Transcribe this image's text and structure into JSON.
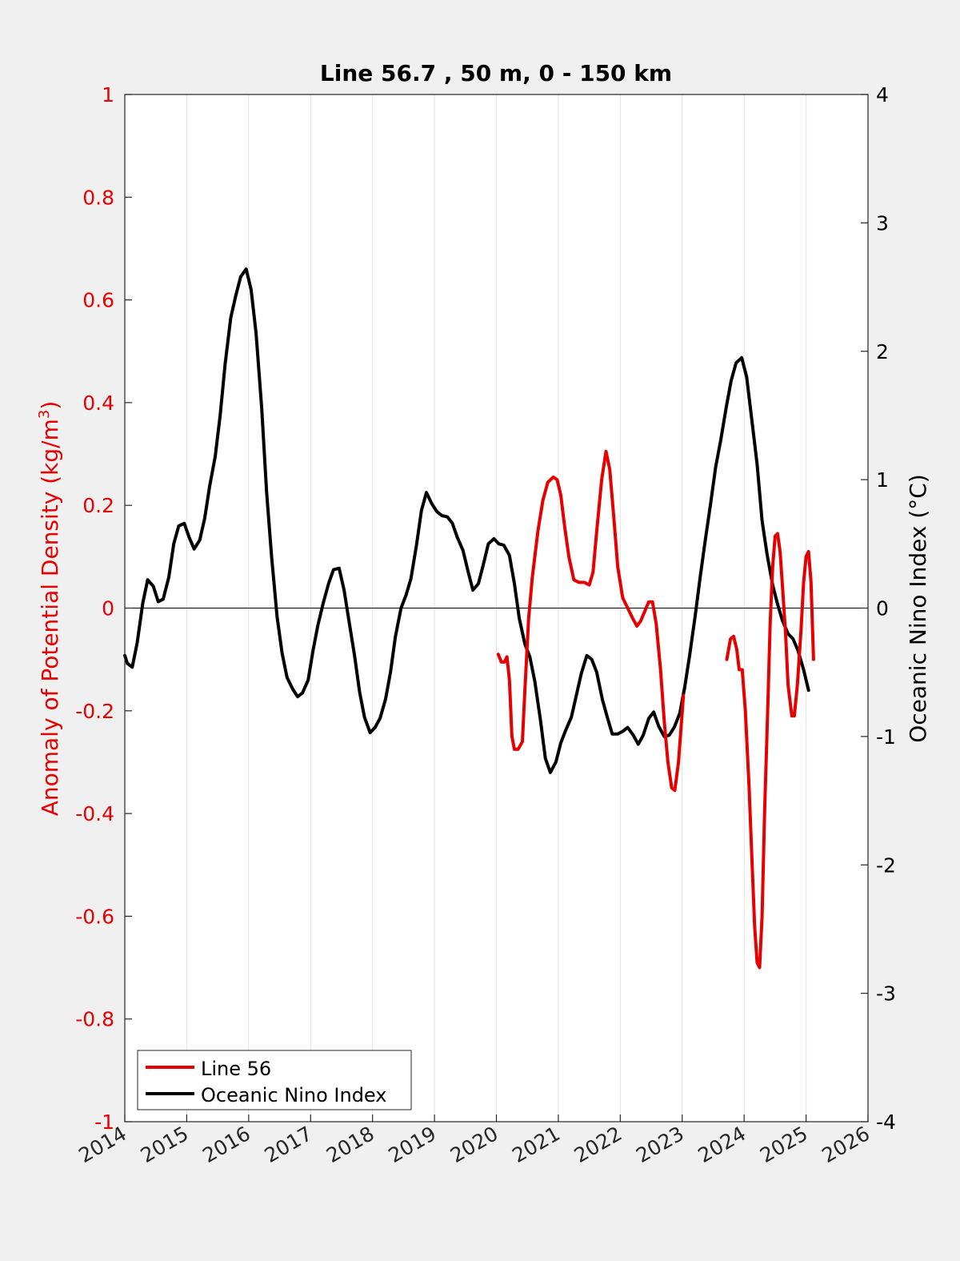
{
  "chart_data": {
    "type": "line",
    "title": "Line 56.7 , 50 m, 0 - 150 km",
    "xlim": [
      2014,
      2026
    ],
    "x_ticks": [
      "2014",
      "2015",
      "2016",
      "2017",
      "2018",
      "2019",
      "2020",
      "2021",
      "2022",
      "2023",
      "2024",
      "2025",
      "2026"
    ],
    "y_left": {
      "label": "Anomaly of Potential Density (kg/m",
      "label_sup": "3",
      "label_close": ")",
      "lim": [
        -1,
        1
      ],
      "ticks": [
        "1",
        "0.8",
        "0.6",
        "0.4",
        "0.2",
        "0",
        "-0.2",
        "-0.4",
        "-0.6",
        "-0.8",
        "-1"
      ],
      "color": "#e60000"
    },
    "y_right": {
      "label": "Oceanic Nino Index (°C)",
      "lim": [
        -4,
        4
      ],
      "ticks": [
        "4",
        "3",
        "2",
        "1",
        "0",
        "-1",
        "-2",
        "-3",
        "-4"
      ],
      "color": "#000000"
    },
    "grid": "vertical",
    "legend_position": "bottom-left",
    "series": [
      {
        "name": "Line 56",
        "axis": "left",
        "color": "#e60000",
        "segments": [
          [
            [
              2020.03,
              -0.09
            ],
            [
              2020.08,
              -0.105
            ],
            [
              2020.13,
              -0.105
            ],
            [
              2020.17,
              -0.095
            ],
            [
              2020.21,
              -0.14
            ],
            [
              2020.25,
              -0.25
            ],
            [
              2020.29,
              -0.275
            ],
            [
              2020.35,
              -0.275
            ],
            [
              2020.42,
              -0.26
            ],
            [
              2020.46,
              -0.16
            ],
            [
              2020.52,
              -0.02
            ],
            [
              2020.58,
              0.06
            ],
            [
              2020.67,
              0.15
            ],
            [
              2020.75,
              0.21
            ],
            [
              2020.83,
              0.245
            ],
            [
              2020.92,
              0.255
            ],
            [
              2020.98,
              0.25
            ],
            [
              2021.04,
              0.22
            ],
            [
              2021.1,
              0.16
            ],
            [
              2021.17,
              0.1
            ],
            [
              2021.25,
              0.055
            ],
            [
              2021.33,
              0.05
            ],
            [
              2021.42,
              0.05
            ],
            [
              2021.5,
              0.045
            ],
            [
              2021.56,
              0.07
            ],
            [
              2021.62,
              0.15
            ],
            [
              2021.7,
              0.25
            ],
            [
              2021.77,
              0.305
            ],
            [
              2021.83,
              0.27
            ],
            [
              2021.9,
              0.17
            ],
            [
              2021.96,
              0.08
            ],
            [
              2022.04,
              0.02
            ],
            [
              2022.12,
              0.0
            ],
            [
              2022.2,
              -0.02
            ],
            [
              2022.27,
              -0.035
            ],
            [
              2022.33,
              -0.025
            ],
            [
              2022.4,
              -0.005
            ],
            [
              2022.46,
              0.012
            ],
            [
              2022.52,
              0.012
            ],
            [
              2022.58,
              -0.03
            ],
            [
              2022.65,
              -0.12
            ],
            [
              2022.71,
              -0.22
            ],
            [
              2022.77,
              -0.3
            ],
            [
              2022.83,
              -0.35
            ],
            [
              2022.88,
              -0.355
            ],
            [
              2022.94,
              -0.3
            ],
            [
              2023.02,
              -0.17
            ]
          ],
          [
            [
              2023.72,
              -0.1
            ],
            [
              2023.78,
              -0.06
            ],
            [
              2023.83,
              -0.055
            ],
            [
              2023.88,
              -0.08
            ],
            [
              2023.92,
              -0.12
            ],
            [
              2023.97,
              -0.12
            ],
            [
              2024.02,
              -0.2
            ],
            [
              2024.08,
              -0.35
            ],
            [
              2024.13,
              -0.5
            ],
            [
              2024.17,
              -0.62
            ],
            [
              2024.21,
              -0.69
            ],
            [
              2024.25,
              -0.7
            ],
            [
              2024.29,
              -0.6
            ],
            [
              2024.33,
              -0.4
            ],
            [
              2024.38,
              -0.2
            ],
            [
              2024.42,
              -0.03
            ],
            [
              2024.46,
              0.08
            ],
            [
              2024.5,
              0.14
            ],
            [
              2024.54,
              0.145
            ],
            [
              2024.58,
              0.11
            ],
            [
              2024.62,
              0.04
            ],
            [
              2024.67,
              -0.05
            ],
            [
              2024.71,
              -0.15
            ],
            [
              2024.77,
              -0.21
            ],
            [
              2024.81,
              -0.21
            ],
            [
              2024.86,
              -0.15
            ],
            [
              2024.92,
              -0.04
            ],
            [
              2024.96,
              0.05
            ],
            [
              2025.0,
              0.1
            ],
            [
              2025.04,
              0.11
            ],
            [
              2025.08,
              0.05
            ],
            [
              2025.12,
              -0.1
            ]
          ]
        ]
      },
      {
        "name": "Oceanic Nino Index",
        "axis": "right",
        "color": "#000000",
        "segments": [
          [
            [
              2014.0,
              -0.37
            ],
            [
              2014.04,
              -0.43
            ],
            [
              2014.12,
              -0.46
            ],
            [
              2014.2,
              -0.27
            ],
            [
              2014.29,
              0.04
            ],
            [
              2014.37,
              0.22
            ],
            [
              2014.46,
              0.17
            ],
            [
              2014.54,
              0.05
            ],
            [
              2014.62,
              0.07
            ],
            [
              2014.71,
              0.24
            ],
            [
              2014.79,
              0.5
            ],
            [
              2014.87,
              0.64
            ],
            [
              2014.96,
              0.66
            ],
            [
              2015.04,
              0.55
            ],
            [
              2015.12,
              0.46
            ],
            [
              2015.21,
              0.53
            ],
            [
              2015.29,
              0.7
            ],
            [
              2015.37,
              0.95
            ],
            [
              2015.46,
              1.18
            ],
            [
              2015.54,
              1.5
            ],
            [
              2015.62,
              1.9
            ],
            [
              2015.71,
              2.26
            ],
            [
              2015.79,
              2.43
            ],
            [
              2015.87,
              2.58
            ],
            [
              2015.96,
              2.64
            ],
            [
              2016.04,
              2.48
            ],
            [
              2016.12,
              2.14
            ],
            [
              2016.21,
              1.56
            ],
            [
              2016.29,
              0.9
            ],
            [
              2016.37,
              0.4
            ],
            [
              2016.46,
              -0.07
            ],
            [
              2016.54,
              -0.35
            ],
            [
              2016.62,
              -0.54
            ],
            [
              2016.71,
              -0.63
            ],
            [
              2016.79,
              -0.69
            ],
            [
              2016.87,
              -0.66
            ],
            [
              2016.96,
              -0.56
            ],
            [
              2017.04,
              -0.33
            ],
            [
              2017.12,
              -0.13
            ],
            [
              2017.21,
              0.05
            ],
            [
              2017.29,
              0.19
            ],
            [
              2017.37,
              0.3
            ],
            [
              2017.46,
              0.31
            ],
            [
              2017.54,
              0.14
            ],
            [
              2017.62,
              -0.1
            ],
            [
              2017.71,
              -0.37
            ],
            [
              2017.79,
              -0.65
            ],
            [
              2017.87,
              -0.85
            ],
            [
              2017.96,
              -0.97
            ],
            [
              2018.04,
              -0.93
            ],
            [
              2018.12,
              -0.86
            ],
            [
              2018.21,
              -0.71
            ],
            [
              2018.29,
              -0.5
            ],
            [
              2018.37,
              -0.22
            ],
            [
              2018.46,
              0.0
            ],
            [
              2018.54,
              0.1
            ],
            [
              2018.62,
              0.23
            ],
            [
              2018.71,
              0.49
            ],
            [
              2018.79,
              0.76
            ],
            [
              2018.87,
              0.9
            ],
            [
              2018.96,
              0.81
            ],
            [
              2019.04,
              0.75
            ],
            [
              2019.12,
              0.72
            ],
            [
              2019.21,
              0.71
            ],
            [
              2019.29,
              0.66
            ],
            [
              2019.37,
              0.55
            ],
            [
              2019.46,
              0.45
            ],
            [
              2019.54,
              0.29
            ],
            [
              2019.62,
              0.14
            ],
            [
              2019.71,
              0.19
            ],
            [
              2019.79,
              0.34
            ],
            [
              2019.87,
              0.5
            ],
            [
              2019.96,
              0.54
            ],
            [
              2020.04,
              0.5
            ],
            [
              2020.12,
              0.49
            ],
            [
              2020.21,
              0.41
            ],
            [
              2020.29,
              0.19
            ],
            [
              2020.37,
              -0.08
            ],
            [
              2020.46,
              -0.28
            ],
            [
              2020.54,
              -0.38
            ],
            [
              2020.62,
              -0.57
            ],
            [
              2020.71,
              -0.87
            ],
            [
              2020.79,
              -1.17
            ],
            [
              2020.87,
              -1.28
            ],
            [
              2020.96,
              -1.2
            ],
            [
              2021.04,
              -1.05
            ],
            [
              2021.12,
              -0.95
            ],
            [
              2021.21,
              -0.85
            ],
            [
              2021.29,
              -0.68
            ],
            [
              2021.37,
              -0.51
            ],
            [
              2021.46,
              -0.37
            ],
            [
              2021.54,
              -0.4
            ],
            [
              2021.62,
              -0.5
            ],
            [
              2021.71,
              -0.71
            ],
            [
              2021.79,
              -0.85
            ],
            [
              2021.87,
              -0.98
            ],
            [
              2021.96,
              -0.98
            ],
            [
              2022.04,
              -0.96
            ],
            [
              2022.12,
              -0.93
            ],
            [
              2022.21,
              -0.99
            ],
            [
              2022.29,
              -1.06
            ],
            [
              2022.37,
              -0.99
            ],
            [
              2022.46,
              -0.86
            ],
            [
              2022.54,
              -0.81
            ],
            [
              2022.62,
              -0.92
            ],
            [
              2022.71,
              -1.0
            ],
            [
              2022.79,
              -0.99
            ],
            [
              2022.87,
              -0.93
            ],
            [
              2022.96,
              -0.82
            ],
            [
              2023.04,
              -0.62
            ],
            [
              2023.12,
              -0.37
            ],
            [
              2023.21,
              -0.06
            ],
            [
              2023.29,
              0.24
            ],
            [
              2023.37,
              0.52
            ],
            [
              2023.46,
              0.82
            ],
            [
              2023.54,
              1.1
            ],
            [
              2023.62,
              1.3
            ],
            [
              2023.71,
              1.56
            ],
            [
              2023.79,
              1.77
            ],
            [
              2023.87,
              1.91
            ],
            [
              2023.96,
              1.95
            ],
            [
              2024.04,
              1.8
            ],
            [
              2024.12,
              1.48
            ],
            [
              2024.21,
              1.12
            ],
            [
              2024.29,
              0.68
            ],
            [
              2024.37,
              0.42
            ],
            [
              2024.46,
              0.18
            ],
            [
              2024.54,
              0.03
            ],
            [
              2024.62,
              -0.1
            ],
            [
              2024.71,
              -0.2
            ],
            [
              2024.79,
              -0.24
            ],
            [
              2024.87,
              -0.33
            ],
            [
              2024.96,
              -0.48
            ],
            [
              2025.04,
              -0.64
            ]
          ]
        ]
      }
    ]
  }
}
